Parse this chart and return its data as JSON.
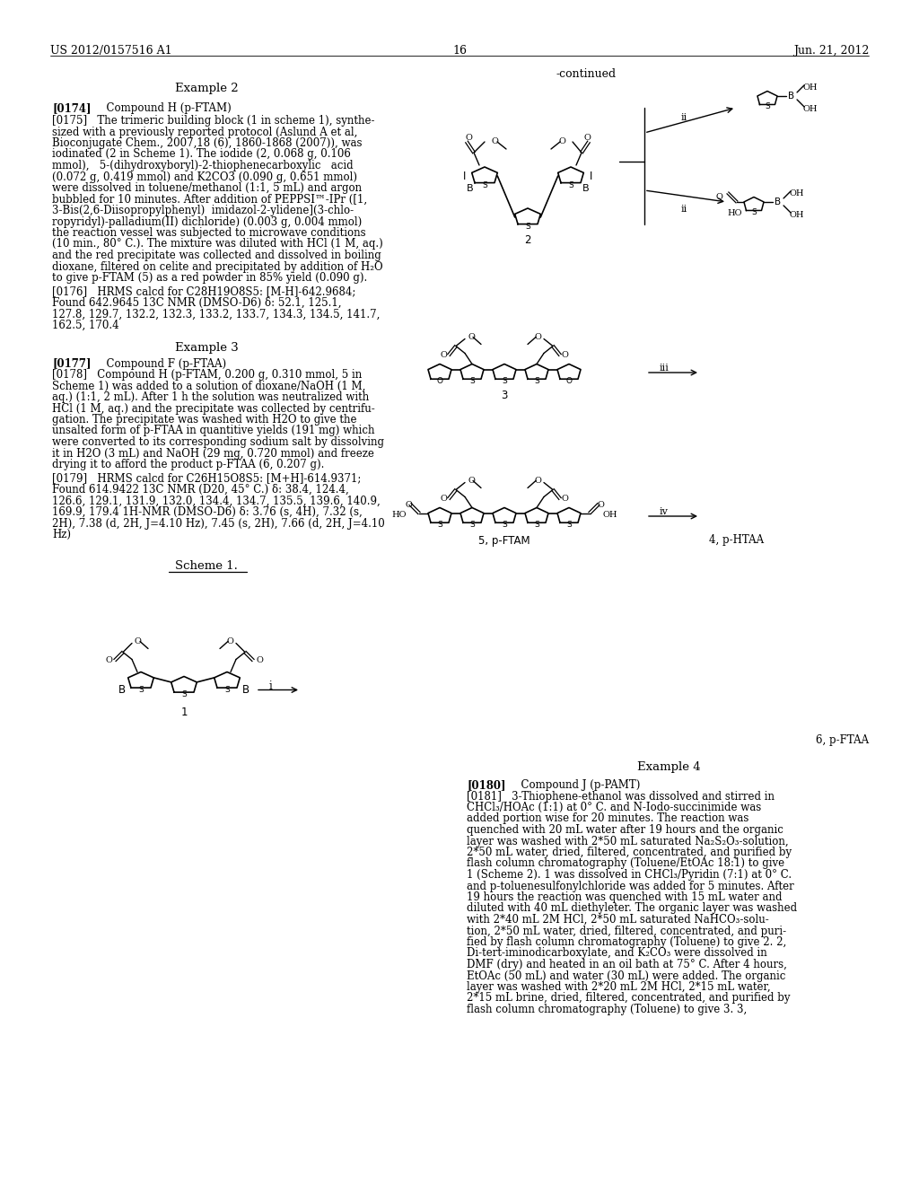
{
  "bg": "#ffffff",
  "header_left": "US 2012/0157516 A1",
  "header_right": "Jun. 21, 2012",
  "page_num": "16",
  "cont": "-continued"
}
